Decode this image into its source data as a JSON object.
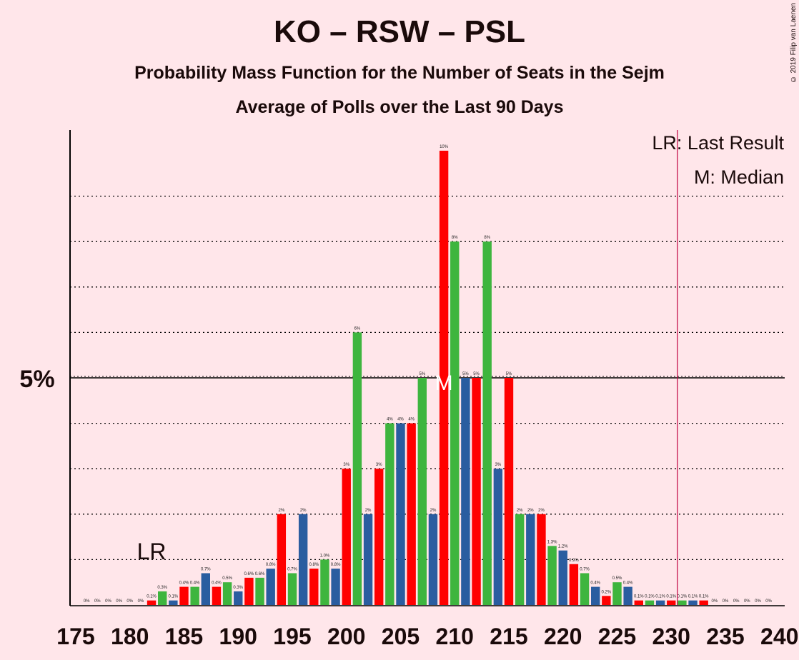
{
  "title": "KO – RSW – PSL",
  "subtitle1": "Probability Mass Function for the Number of Seats in the Sejm",
  "subtitle2": "Average of Polls over the Last 90 Days",
  "copyright": "© 2019 Filip van Laenen",
  "legend": {
    "lr": "LR: Last Result",
    "m": "M: Median"
  },
  "markers": {
    "lr_label": "LR",
    "lr_seat": 182,
    "median_label": "M",
    "median_seat": 209,
    "majority_seat": 231
  },
  "colors": {
    "background": "#FFE6EA",
    "ko_blue": "#2A5DA0",
    "psl_green": "#3EB53E",
    "red": "#FF0000",
    "majority_line": "#C00040"
  },
  "chart_data": {
    "type": "bar",
    "xlabel": "",
    "ylabel": "",
    "y_tick_label": "5%",
    "xlim": [
      175,
      240
    ],
    "ylim": [
      0,
      10.5
    ],
    "x_ticks": [
      175,
      180,
      185,
      190,
      195,
      200,
      205,
      210,
      215,
      220,
      225,
      230,
      235,
      240
    ],
    "seats": [
      176,
      177,
      178,
      179,
      180,
      181,
      182,
      183,
      184,
      185,
      186,
      187,
      188,
      189,
      190,
      191,
      192,
      193,
      194,
      195,
      196,
      197,
      198,
      199,
      200,
      201,
      202,
      203,
      204,
      205,
      206,
      207,
      208,
      209,
      210,
      211,
      212,
      213,
      214,
      215,
      216,
      217,
      218,
      219,
      220,
      221,
      222,
      223,
      224,
      225,
      226,
      227,
      228,
      229,
      230,
      231,
      232,
      233,
      234,
      235,
      236,
      237,
      238,
      239
    ],
    "values": [
      0,
      0,
      0,
      0,
      0,
      0,
      0.1,
      0.3,
      0.1,
      0.4,
      0.4,
      0.7,
      0.4,
      0.5,
      0.3,
      0.6,
      0.6,
      0.8,
      2,
      0.7,
      2,
      0.8,
      1.0,
      0.8,
      3,
      6,
      2,
      3,
      4,
      4,
      4,
      5,
      2,
      10,
      8,
      5,
      5,
      8,
      3,
      5,
      2,
      2,
      2,
      1.3,
      1.2,
      0.9,
      0.7,
      0.4,
      0.2,
      0.5,
      0.4,
      0.1,
      0.1,
      0.1,
      0.1,
      0.1,
      0.1,
      0.1,
      0,
      0,
      0,
      0,
      0,
      0
    ],
    "labels": [
      "0%",
      "0%",
      "0%",
      "0%",
      "0%",
      "0%",
      "0.1%",
      "0.3%",
      "0.1%",
      "0.4%",
      "0.4%",
      "0.7%",
      "0.4%",
      "0.5%",
      "0.3%",
      "0.6%",
      "0.6%",
      "0.8%",
      "2%",
      "0.7%",
      "2%",
      "0.8%",
      "1.0%",
      "0.8%",
      "3%",
      "6%",
      "2%",
      "3%",
      "4%",
      "4%",
      "4%",
      "5%",
      "2%",
      "10%",
      "8%",
      "5%",
      "5%",
      "8%",
      "3%",
      "5%",
      "2%",
      "2%",
      "2%",
      "1.3%",
      "1.2%",
      "0.9%",
      "0.7%",
      "0.4%",
      "0.2%",
      "0.5%",
      "0.4%",
      "0.1%",
      "0.1%",
      "0.1%",
      "0.1%",
      "0.1%",
      "0.1%",
      "0.1%",
      "0%",
      "0%",
      "0%",
      "0%",
      "0%",
      "0%"
    ]
  }
}
